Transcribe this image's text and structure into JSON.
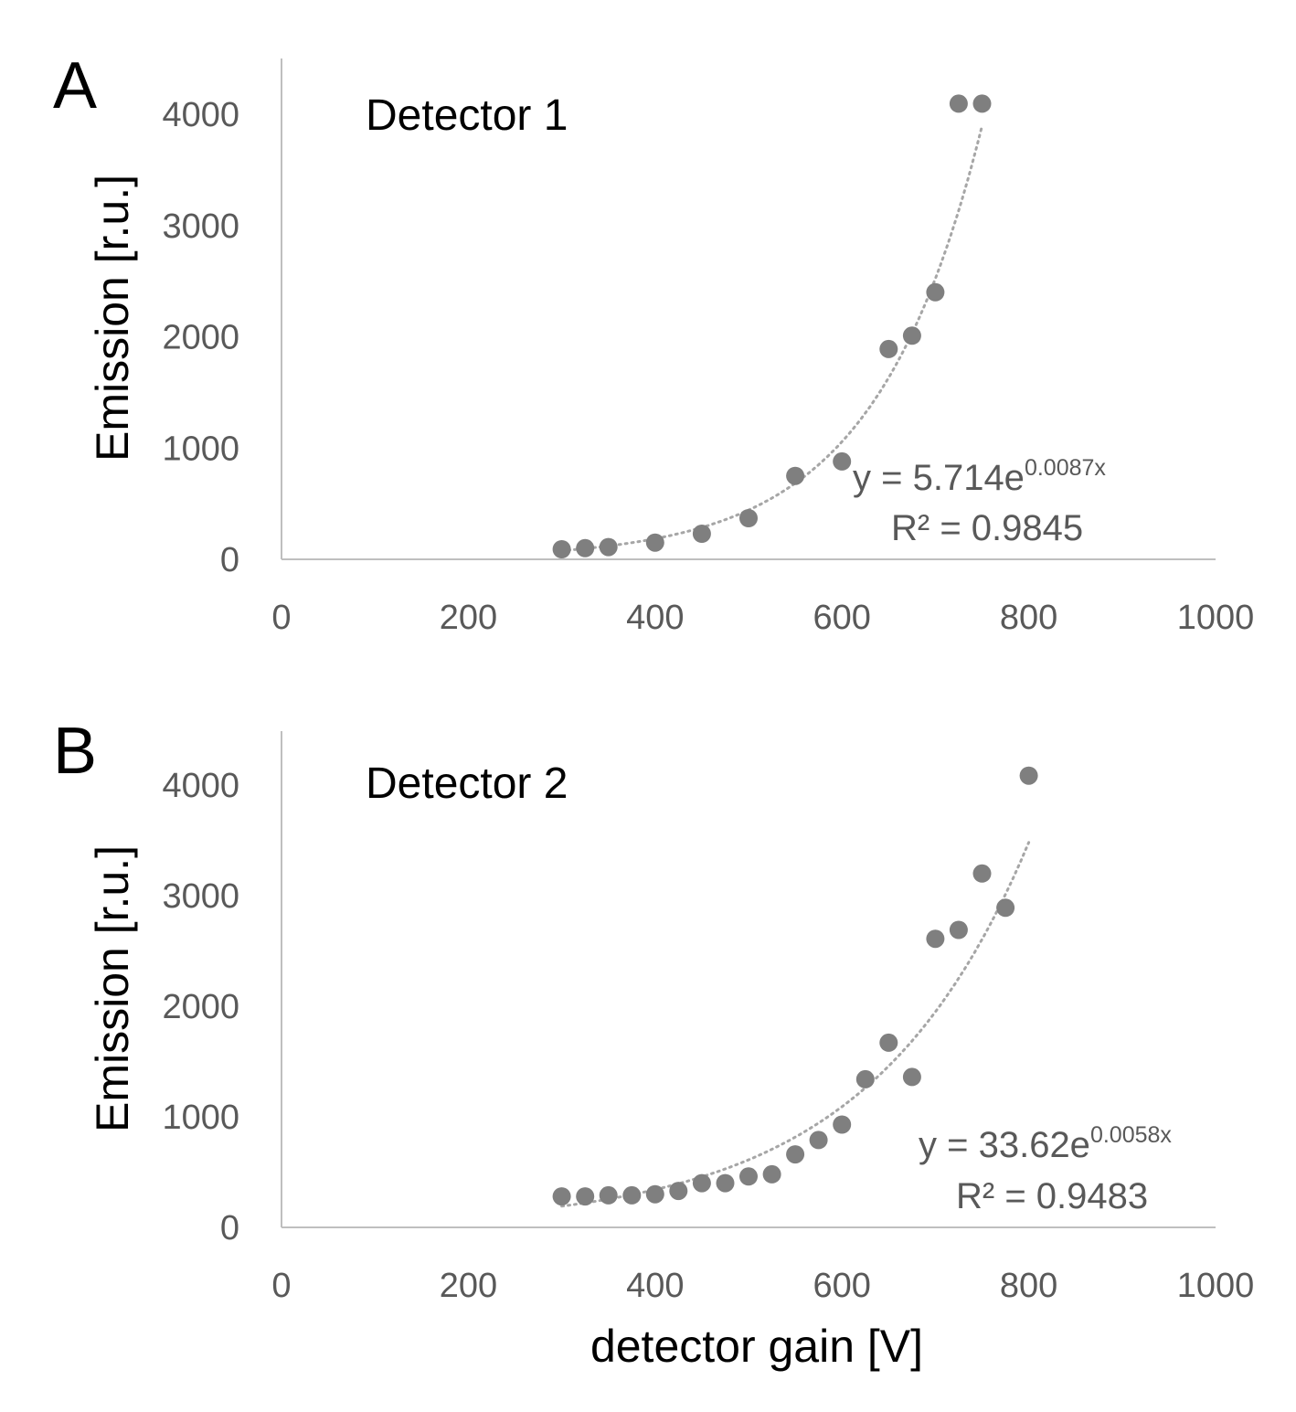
{
  "chart_data": [
    {
      "type": "scatter",
      "panel_label": "A",
      "title": "Detector 1",
      "ylabel": "Emission [r.u.]",
      "xlabel": "",
      "xlim": [
        0,
        1000
      ],
      "ylim": [
        0,
        4000
      ],
      "x_ticks": [
        "0",
        "200",
        "400",
        "600",
        "800",
        "1000"
      ],
      "y_ticks": [
        "0",
        "1000",
        "2000",
        "3000",
        "4000"
      ],
      "grid": false,
      "marker_color": "#7f7f7f",
      "trendline": {
        "type": "exponential",
        "a": 5.714,
        "b": 0.0087,
        "x_range": [
          300,
          750
        ],
        "style": "dotted",
        "color": "#a6a6a6",
        "equation_prefix": "y = 5.714e",
        "equation_exponent": "0.0087x",
        "r_squared_label": "R² = 0.9845"
      },
      "x": [
        300,
        325,
        350,
        400,
        450,
        500,
        550,
        600,
        650,
        675,
        700,
        725,
        750
      ],
      "y": [
        90,
        100,
        110,
        150,
        230,
        370,
        750,
        880,
        1890,
        2010,
        2400,
        4095,
        4095
      ]
    },
    {
      "type": "scatter",
      "panel_label": "B",
      "title": "Detector 2",
      "ylabel": "Emission [r.u.]",
      "xlabel": "detector gain [V]",
      "xlim": [
        0,
        1000
      ],
      "ylim": [
        0,
        4000
      ],
      "x_ticks": [
        "0",
        "200",
        "400",
        "600",
        "800",
        "1000"
      ],
      "y_ticks": [
        "0",
        "1000",
        "2000",
        "3000",
        "4000"
      ],
      "grid": false,
      "marker_color": "#7f7f7f",
      "trendline": {
        "type": "exponential",
        "a": 33.62,
        "b": 0.0058,
        "x_range": [
          300,
          800
        ],
        "style": "dotted",
        "color": "#a6a6a6",
        "equation_prefix": "y = 33.62e",
        "equation_exponent": "0.0058x",
        "r_squared_label": "R² = 0.9483"
      },
      "x": [
        300,
        325,
        350,
        375,
        400,
        425,
        450,
        475,
        500,
        525,
        550,
        575,
        600,
        625,
        650,
        675,
        700,
        725,
        750,
        775,
        800
      ],
      "y": [
        280,
        280,
        290,
        290,
        300,
        330,
        400,
        400,
        460,
        480,
        660,
        790,
        930,
        1340,
        1670,
        1360,
        2610,
        2690,
        3200,
        2890,
        4085
      ]
    }
  ]
}
